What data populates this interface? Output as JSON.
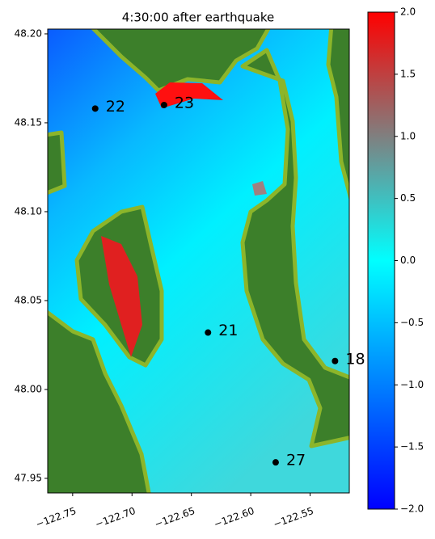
{
  "chart_data": {
    "type": "scatter",
    "title": "4:30:00 after earthquake",
    "x": [
      -122.731,
      -122.673,
      -122.636,
      -122.529,
      -122.579
    ],
    "values": [
      48.158,
      48.16,
      48.032,
      48.016,
      47.959
    ],
    "labels": [
      "22",
      "23",
      "21",
      "18",
      "27"
    ],
    "color": "#000000",
    "xlim": [
      -122.771,
      -122.517
    ],
    "ylim": [
      47.9418,
      48.2027
    ],
    "xticks": [
      {
        "value": -122.75,
        "label": "−122.75"
      },
      {
        "value": -122.7,
        "label": "−122.70"
      },
      {
        "value": -122.65,
        "label": "−122.65"
      },
      {
        "value": -122.6,
        "label": "−122.60"
      },
      {
        "value": -122.55,
        "label": "−122.55"
      }
    ],
    "yticks": [
      {
        "value": 47.95,
        "label": "47.95"
      },
      {
        "value": 48.0,
        "label": "48.00"
      },
      {
        "value": 48.05,
        "label": "48.05"
      },
      {
        "value": 48.1,
        "label": "48.10"
      },
      {
        "value": 48.15,
        "label": "48.15"
      },
      {
        "value": 48.2,
        "label": "48.20"
      }
    ],
    "colorbar": {
      "lim": [
        -2,
        2
      ],
      "colors": [
        "#0000ff",
        "#00ffff",
        "#ff0000"
      ],
      "ticks": [
        {
          "value": -2,
          "label": "−2.0"
        },
        {
          "value": -1.5,
          "label": "−1.5"
        },
        {
          "value": -1,
          "label": "−1.0"
        },
        {
          "value": -0.5,
          "label": "−0.5"
        },
        {
          "value": 0,
          "label": "0.0"
        },
        {
          "value": 0.5,
          "label": "0.5"
        },
        {
          "value": 1,
          "label": "1.0"
        },
        {
          "value": 1.5,
          "label": "1.5"
        },
        {
          "value": 2,
          "label": "2.0"
        }
      ]
    }
  }
}
